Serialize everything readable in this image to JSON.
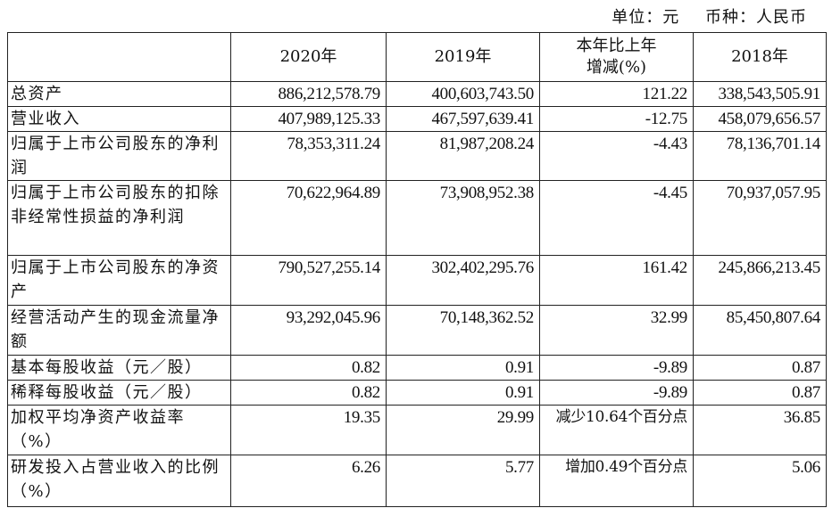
{
  "unit_line": {
    "unit": "单位：元",
    "currency": "币种：人民币"
  },
  "headers": [
    "",
    "2020年",
    "2019年",
    "本年比上年\n增减(%)",
    "2018年"
  ],
  "rows": [
    {
      "label": "总资产",
      "values": [
        "886,212,578.79",
        "400,603,743.50",
        "121.22",
        "338,543,505.91"
      ]
    },
    {
      "label": "营业收入",
      "values": [
        "407,989,125.33",
        "467,597,639.41",
        "-12.75",
        "458,079,656.57"
      ]
    },
    {
      "label": "归属于上市公司股东的净利润",
      "values": [
        "78,353,311.24",
        "81,987,208.24",
        "-4.43",
        "78,136,701.14"
      ]
    },
    {
      "label": "归属于上市公司股东的扣除非经常性损益的净利润",
      "values": [
        "70,622,964.89",
        "73,908,952.38",
        "-4.45",
        "70,937,057.95"
      ]
    },
    {
      "label": "归属于上市公司股东的净资产",
      "values": [
        "790,527,255.14",
        "302,402,295.76",
        "161.42",
        "245,866,213.45"
      ]
    },
    {
      "label": "经营活动产生的现金流量净额",
      "values": [
        "93,292,045.96",
        "70,148,362.52",
        "32.99",
        "85,450,807.64"
      ]
    },
    {
      "label": "基本每股收益（元／股）",
      "values": [
        "0.82",
        "0.91",
        "-9.89",
        "0.87"
      ]
    },
    {
      "label": "稀释每股收益（元／股）",
      "values": [
        "0.82",
        "0.91",
        "-9.89",
        "0.87"
      ]
    },
    {
      "label": "加权平均净资产收益率（%）",
      "values": [
        "19.35",
        "29.99",
        "减少10.64个百分点",
        "36.85"
      ]
    },
    {
      "label": "研发投入占营业收入的比例（%）",
      "values": [
        "6.26",
        "5.77",
        "增加0.49个百分点",
        "5.06"
      ]
    }
  ]
}
